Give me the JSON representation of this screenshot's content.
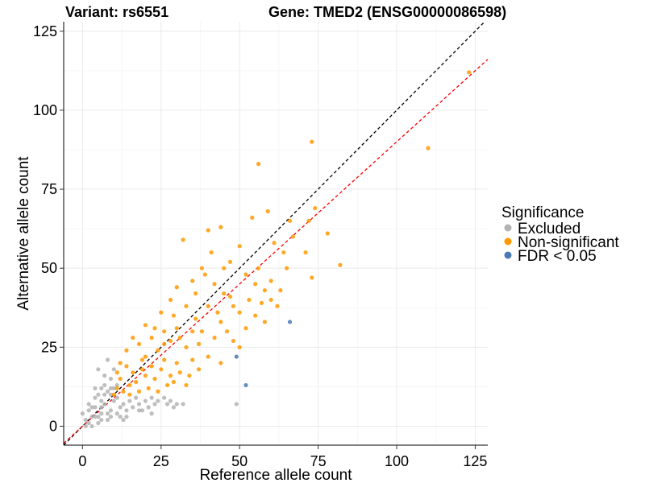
{
  "chart_data": {
    "type": "scatter",
    "title_left": "Variant: rs6551",
    "title_right": "Gene: TMED2 (ENSG00000086598)",
    "xlabel": "Reference allele count",
    "ylabel": "Alternative allele count",
    "xlim": [
      -6,
      129
    ],
    "ylim": [
      -6,
      128
    ],
    "xticks": [
      0,
      25,
      50,
      75,
      100,
      125
    ],
    "yticks": [
      0,
      25,
      50,
      75,
      100,
      125
    ],
    "xtick_labels": [
      "0",
      "25",
      "50",
      "75",
      "100",
      "125"
    ],
    "ytick_labels": [
      "0",
      "25",
      "50",
      "75",
      "100",
      "125"
    ],
    "grid": true,
    "legend": {
      "title": "Significance",
      "position": "right",
      "entries": [
        {
          "label": "Excluded",
          "color": "#b3b3b3"
        },
        {
          "label": "Non-significant",
          "color": "#ff9900"
        },
        {
          "label": "FDR < 0.05",
          "color": "#4a7ab5"
        }
      ]
    },
    "reference_lines": [
      {
        "name": "identity",
        "slope": 1.0,
        "intercept": 0,
        "color": "#000000",
        "style": "dashed"
      },
      {
        "name": "fit",
        "slope": 0.9,
        "intercept": 0,
        "color": "#ff0000",
        "style": "dashed"
      }
    ],
    "series": [
      {
        "name": "FDR < 0.05",
        "color": "#4a7ab5",
        "points": [
          [
            66,
            33
          ],
          [
            49,
            22
          ],
          [
            52,
            13
          ]
        ]
      },
      {
        "name": "Non-significant",
        "color": "#ff9900",
        "points": [
          [
            123,
            112
          ],
          [
            110,
            88
          ],
          [
            73,
            90
          ],
          [
            56,
            83
          ],
          [
            82,
            51
          ],
          [
            78,
            61
          ],
          [
            74,
            69
          ],
          [
            72,
            65
          ],
          [
            66,
            65
          ],
          [
            67,
            60
          ],
          [
            64,
            55
          ],
          [
            71,
            55
          ],
          [
            73,
            47
          ],
          [
            65,
            50
          ],
          [
            61,
            58
          ],
          [
            59,
            68
          ],
          [
            54,
            66
          ],
          [
            50,
            57
          ],
          [
            32,
            59
          ],
          [
            44,
            63
          ],
          [
            40,
            62
          ],
          [
            47,
            52
          ],
          [
            45,
            50
          ],
          [
            52,
            48
          ],
          [
            55,
            45
          ],
          [
            60,
            40
          ],
          [
            58,
            43
          ],
          [
            38,
            50
          ],
          [
            35,
            46
          ],
          [
            42,
            45
          ],
          [
            30,
            44
          ],
          [
            28,
            40
          ],
          [
            33,
            38
          ],
          [
            25,
            36
          ],
          [
            40,
            38
          ],
          [
            45,
            42
          ],
          [
            48,
            38
          ],
          [
            50,
            36
          ],
          [
            44,
            33
          ],
          [
            38,
            30
          ],
          [
            36,
            34
          ],
          [
            30,
            31
          ],
          [
            26,
            30
          ],
          [
            22,
            28
          ],
          [
            20,
            32
          ],
          [
            18,
            26
          ],
          [
            24,
            24
          ],
          [
            28,
            27
          ],
          [
            33,
            25
          ],
          [
            37,
            26
          ],
          [
            42,
            28
          ],
          [
            46,
            30
          ],
          [
            52,
            31
          ],
          [
            55,
            35
          ],
          [
            48,
            27
          ],
          [
            40,
            22
          ],
          [
            35,
            21
          ],
          [
            30,
            20
          ],
          [
            26,
            21
          ],
          [
            22,
            19
          ],
          [
            19,
            21
          ],
          [
            16,
            17
          ],
          [
            14,
            19
          ],
          [
            12,
            15
          ],
          [
            11,
            12
          ],
          [
            13,
            11
          ],
          [
            15,
            13
          ],
          [
            17,
            14
          ],
          [
            20,
            16
          ],
          [
            23,
            15
          ],
          [
            25,
            18
          ],
          [
            28,
            16
          ],
          [
            31,
            17
          ],
          [
            34,
            16
          ],
          [
            18,
            11
          ],
          [
            21,
            12
          ],
          [
            24,
            11
          ],
          [
            27,
            13
          ],
          [
            29,
            14
          ],
          [
            33,
            13
          ],
          [
            37,
            18
          ],
          [
            44,
            20
          ],
          [
            50,
            25
          ],
          [
            58,
            33
          ],
          [
            62,
            38
          ],
          [
            12,
            20
          ],
          [
            10,
            10
          ],
          [
            11,
            17
          ],
          [
            14,
            24
          ],
          [
            16,
            28
          ],
          [
            39,
            48
          ],
          [
            41,
            55
          ],
          [
            56,
            50
          ],
          [
            60,
            46
          ],
          [
            63,
            43
          ],
          [
            57,
            39
          ],
          [
            20,
            22
          ],
          [
            26,
            26
          ],
          [
            31,
            28
          ],
          [
            35,
            30
          ],
          [
            43,
            36
          ],
          [
            47,
            41
          ],
          [
            53,
            40
          ],
          [
            36,
            42
          ],
          [
            29,
            35
          ],
          [
            23,
            31
          ],
          [
            19,
            18
          ],
          [
            15,
            10
          ]
        ]
      },
      {
        "name": "Excluded",
        "color": "#b3b3b3",
        "points": [
          [
            0,
            4
          ],
          [
            1,
            2
          ],
          [
            2,
            5
          ],
          [
            3,
            3
          ],
          [
            4,
            6
          ],
          [
            5,
            1
          ],
          [
            6,
            4
          ],
          [
            7,
            7
          ],
          [
            8,
            2
          ],
          [
            9,
            5
          ],
          [
            10,
            8
          ],
          [
            4,
            9
          ],
          [
            6,
            12
          ],
          [
            7,
            16
          ],
          [
            5,
            18
          ],
          [
            8,
            21
          ],
          [
            9,
            15
          ],
          [
            10,
            18
          ],
          [
            11,
            9
          ],
          [
            12,
            6
          ],
          [
            13,
            7
          ],
          [
            14,
            5
          ],
          [
            15,
            8
          ],
          [
            16,
            6
          ],
          [
            17,
            9
          ],
          [
            18,
            7
          ],
          [
            19,
            5
          ],
          [
            20,
            8
          ],
          [
            21,
            6
          ],
          [
            22,
            9
          ],
          [
            23,
            7
          ],
          [
            24,
            8
          ],
          [
            26,
            9
          ],
          [
            27,
            7
          ],
          [
            28,
            8
          ],
          [
            29,
            6
          ],
          [
            30,
            7
          ],
          [
            32,
            7
          ],
          [
            49,
            7
          ],
          [
            1,
            0
          ],
          [
            2,
            1
          ],
          [
            3,
            0
          ],
          [
            5,
            3
          ],
          [
            6,
            2
          ],
          [
            8,
            4
          ],
          [
            9,
            3
          ],
          [
            11,
            4
          ],
          [
            12,
            3
          ],
          [
            13,
            2
          ],
          [
            14,
            3
          ],
          [
            3,
            6
          ],
          [
            2,
            7
          ],
          [
            4,
            3
          ],
          [
            6,
            8
          ],
          [
            7,
            10
          ],
          [
            8,
            11
          ],
          [
            9,
            10
          ],
          [
            10,
            12
          ],
          [
            11,
            13
          ],
          [
            6,
            6
          ],
          [
            5,
            10
          ],
          [
            4,
            12
          ],
          [
            7,
            13
          ],
          [
            9,
            12
          ],
          [
            18,
            5
          ],
          [
            22,
            4
          ]
        ]
      }
    ]
  }
}
